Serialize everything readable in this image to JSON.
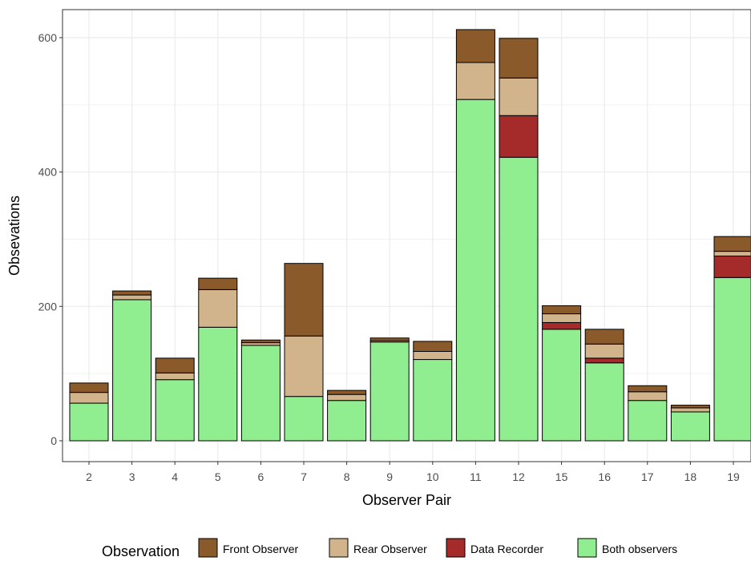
{
  "chart_data": {
    "type": "bar",
    "stacked": true,
    "xlabel": "Observer Pair",
    "ylabel": "Obsevations",
    "ylim": [
      0,
      640
    ],
    "yticks": [
      0,
      200,
      400,
      600
    ],
    "grid": true,
    "legend_position": "bottom",
    "legend_title": "Observation",
    "categories": [
      "2",
      "3",
      "4",
      "5",
      "6",
      "7",
      "8",
      "9",
      "10",
      "11",
      "12",
      "15",
      "16",
      "17",
      "18",
      "19"
    ],
    "series": [
      {
        "name": "Both observers",
        "color": "#90EE90",
        "values": [
          56,
          210,
          91,
          169,
          142,
          66,
          60,
          147,
          121,
          508,
          422,
          166,
          116,
          60,
          43,
          243
        ]
      },
      {
        "name": "Data Recorder",
        "color": "#A52A2A",
        "values": [
          0,
          0,
          0,
          0,
          0,
          0,
          0,
          0,
          0,
          0,
          62,
          10,
          7,
          0,
          0,
          32
        ]
      },
      {
        "name": "Rear Observer",
        "color": "#D2B48C",
        "values": [
          16,
          7,
          10,
          56,
          4,
          90,
          9,
          2,
          12,
          55,
          56,
          13,
          21,
          13,
          6,
          7
        ]
      },
      {
        "name": "Front Observer",
        "color": "#8B5A2B",
        "values": [
          14,
          6,
          22,
          17,
          4,
          108,
          6,
          4,
          15,
          49,
          59,
          12,
          22,
          9,
          4,
          22
        ]
      }
    ],
    "legend_order": [
      "Front Observer",
      "Rear Observer",
      "Data Recorder",
      "Both observers"
    ]
  }
}
